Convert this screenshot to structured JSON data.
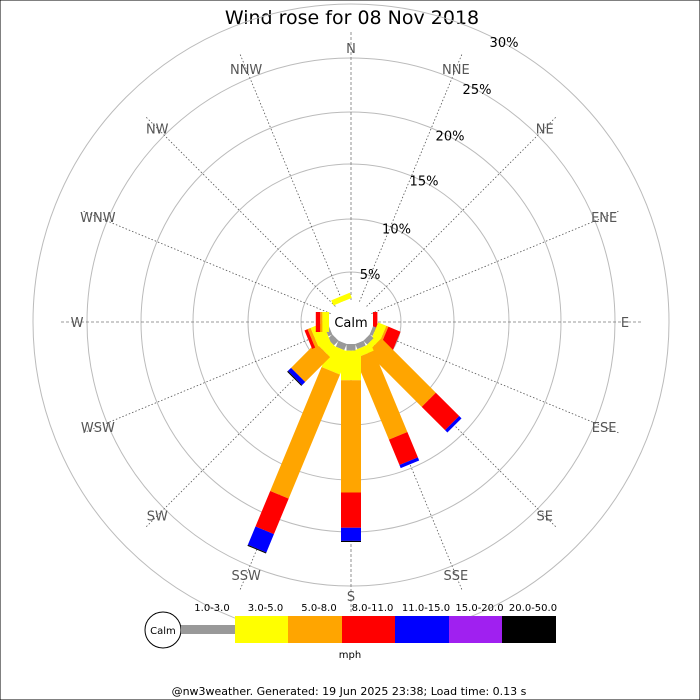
{
  "chart_data": {
    "type": "windrose",
    "title": "Wind rose for 08 Nov 2018",
    "directions": [
      "N",
      "NNE",
      "NE",
      "ENE",
      "E",
      "ESE",
      "SE",
      "SSE",
      "S",
      "SSW",
      "SW",
      "WSW",
      "W",
      "WNW",
      "NW",
      "NNW"
    ],
    "radial_ticks": [
      "5%",
      "10%",
      "15%",
      "20%",
      "25%",
      "30%"
    ],
    "radial_max": 30,
    "center_label": "Calm",
    "speed_bins": [
      {
        "label": "1.0-3.0",
        "color": "#999999"
      },
      {
        "label": "3.0-5.0",
        "color": "#ffff00"
      },
      {
        "label": "5.0-8.0",
        "color": "#ffa500"
      },
      {
        "label": "8.0-11.0",
        "color": "#ff0000"
      },
      {
        "label": "11.0-15.0",
        "color": "#0000ff"
      },
      {
        "label": "15.0-20.0",
        "color": "#a020f0"
      },
      {
        "label": "20.0-50.0",
        "color": "#000000"
      }
    ],
    "legend_unit": "mph",
    "series": [
      {
        "direction": "N",
        "values": [
          0,
          0,
          0,
          0,
          0,
          0,
          0
        ]
      },
      {
        "direction": "NNE",
        "values": [
          0,
          0,
          0,
          0,
          0,
          0,
          0
        ]
      },
      {
        "direction": "NE",
        "values": [
          0,
          0,
          0,
          0,
          0,
          0,
          0
        ]
      },
      {
        "direction": "ENE",
        "values": [
          0,
          0,
          0,
          0,
          0,
          0,
          0
        ]
      },
      {
        "direction": "E",
        "values": [
          0,
          0,
          0,
          0.4,
          0,
          0,
          0
        ]
      },
      {
        "direction": "ESE",
        "values": [
          0.3,
          0.8,
          0.2,
          1.2,
          0,
          0,
          0
        ]
      },
      {
        "direction": "SE",
        "values": [
          0.5,
          0.5,
          7.0,
          3.0,
          0.3,
          0,
          0
        ]
      },
      {
        "direction": "SSE",
        "values": [
          0.5,
          0.7,
          8.0,
          2.5,
          0.3,
          0,
          0
        ]
      },
      {
        "direction": "S",
        "values": [
          0.6,
          2.7,
          10.2,
          3.2,
          1.2,
          0,
          0.1
        ]
      },
      {
        "direction": "SSW",
        "values": [
          0.6,
          2.2,
          12.2,
          3.5,
          1.8,
          0,
          0.1
        ]
      },
      {
        "direction": "SW",
        "values": [
          0.6,
          1.0,
          3.2,
          0,
          0.4,
          0,
          0.1
        ]
      },
      {
        "direction": "WSW",
        "values": [
          0.4,
          1.2,
          0.3,
          0.3,
          0,
          0,
          0
        ]
      },
      {
        "direction": "W",
        "values": [
          0,
          0.6,
          0.2,
          0.4,
          0,
          0,
          0
        ]
      },
      {
        "direction": "WNW",
        "values": [
          0,
          0,
          0,
          0,
          0,
          0,
          0
        ]
      },
      {
        "direction": "NW",
        "values": [
          0,
          0,
          0,
          0,
          0,
          0,
          0
        ]
      },
      {
        "direction": "NNW",
        "values": [
          0,
          0.5,
          0,
          0,
          0,
          0,
          0
        ]
      }
    ],
    "footer": "@nw3weather. Generated: 19 Jun 2025 23:38; Load time: 0.13 s"
  }
}
